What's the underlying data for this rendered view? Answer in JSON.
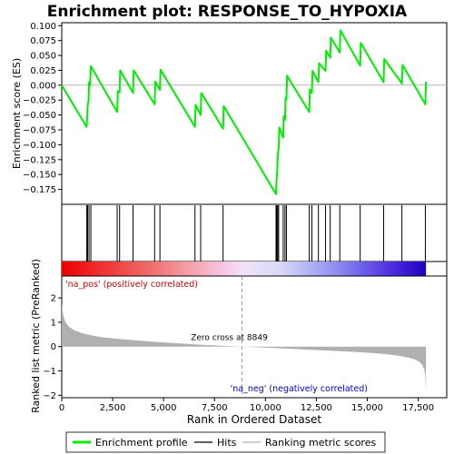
{
  "chart_data": {
    "type": "line",
    "title": "Enrichment plot: RESPONSE_TO_HYPOXIA",
    "es_panel": {
      "ylabel": "Enrichment score (ES)",
      "ylim": [
        -0.2,
        0.105
      ],
      "yticks": [
        -0.175,
        -0.15,
        -0.125,
        -0.1,
        -0.075,
        -0.05,
        -0.025,
        0.0,
        0.025,
        0.05,
        0.075,
        0.1
      ],
      "ytick_labels": [
        "−0.175",
        "−0.150",
        "−0.125",
        "−0.100",
        "−0.075",
        "−0.050",
        "−0.025",
        "0.000",
        "0.025",
        "0.050",
        "0.075",
        "0.100"
      ],
      "line_color": "#00ee00",
      "series": [
        {
          "x": [
            0,
            1220,
            1250,
            1270,
            1320,
            1340,
            1390,
            1430,
            2720,
            2760,
            2840,
            2870,
            3500,
            3530,
            4560,
            4590,
            4820,
            4850,
            6540,
            6570,
            6820,
            6850,
            7920,
            7950,
            10520,
            10540,
            10580,
            10600,
            10650,
            10680,
            10870,
            10900,
            10960,
            10990,
            11030,
            11060,
            12150,
            12180,
            12280,
            12310,
            12600,
            12630,
            12950,
            12980,
            13180,
            13210,
            13650,
            13680,
            14650,
            14680,
            15800,
            15830,
            16700,
            16730,
            17850,
            17880
          ],
          "y": [
            0.0,
            -0.07,
            -0.055,
            -0.035,
            -0.025,
            0.005,
            0.0,
            0.032,
            -0.045,
            -0.01,
            -0.012,
            0.025,
            -0.013,
            0.025,
            -0.032,
            0.006,
            -0.008,
            0.026,
            -0.07,
            -0.033,
            -0.05,
            -0.013,
            -0.073,
            -0.035,
            -0.183,
            -0.163,
            -0.143,
            -0.12,
            -0.105,
            -0.071,
            -0.088,
            -0.052,
            -0.058,
            -0.021,
            -0.024,
            0.016,
            -0.045,
            -0.007,
            -0.013,
            0.024,
            0.005,
            0.037,
            0.024,
            0.058,
            0.046,
            0.08,
            0.055,
            0.092,
            0.033,
            0.071,
            0.005,
            0.044,
            0.003,
            0.034,
            -0.032,
            0.006
          ]
        }
      ]
    },
    "hits": [
      1220,
      1270,
      1340,
      1430,
      2720,
      2840,
      3500,
      4560,
      4820,
      6540,
      6820,
      7920,
      10520,
      10560,
      10600,
      10650,
      10870,
      10960,
      11030,
      12150,
      12280,
      12600,
      12950,
      13180,
      13650,
      14650,
      15800,
      16700,
      17850
    ],
    "rank_panel": {
      "ylabel": "Ranked list metric (PreRanked)",
      "ylim": [
        -2.1,
        2.9
      ],
      "yticks": [
        -2,
        -1,
        0,
        1,
        2
      ],
      "ytick_labels": [
        "−2",
        "−1",
        "0",
        "1",
        "2"
      ],
      "fill_color": "#b0b0b0",
      "curve_x": [
        0,
        20,
        60,
        120,
        200,
        350,
        600,
        1000,
        1500,
        2000,
        3000,
        4000,
        5000,
        6000,
        7000,
        8000,
        8849,
        10000,
        11000,
        12000,
        13000,
        14000,
        15000,
        15800,
        16500,
        17000,
        17300,
        17550,
        17700,
        17800,
        17850,
        17880
      ],
      "curve_y": [
        1.8,
        1.6,
        1.35,
        1.15,
        0.98,
        0.82,
        0.68,
        0.55,
        0.45,
        0.38,
        0.3,
        0.23,
        0.17,
        0.12,
        0.07,
        0.03,
        0.0,
        -0.04,
        -0.08,
        -0.12,
        -0.16,
        -0.2,
        -0.25,
        -0.3,
        -0.37,
        -0.45,
        -0.52,
        -0.62,
        -0.75,
        -0.95,
        -1.2,
        -1.9
      ],
      "zero_cross_label": "Zero cross at 8849",
      "zero_cross": 8849,
      "pos_label": "'na_pos' (positively correlated)",
      "neg_label": "'na_neg' (negatively correlated)"
    },
    "xlabel": "Rank in Ordered Dataset",
    "xlim": [
      0,
      18900
    ],
    "xticks": [
      0,
      2500,
      5000,
      7500,
      10000,
      12500,
      15000,
      17500
    ],
    "xtick_labels": [
      "0",
      "2,500",
      "5,000",
      "7,500",
      "10,000",
      "12,500",
      "15,000",
      "17,500"
    ],
    "n_genes": 17880,
    "legend": {
      "placement": "bottom",
      "items": [
        {
          "label": "Enrichment profile",
          "color": "#00ee00",
          "kind": "thick-line"
        },
        {
          "label": "Hits",
          "color": "#000000",
          "kind": "line"
        },
        {
          "label": "Ranking metric scores",
          "color": "#b0b0b0",
          "kind": "line"
        }
      ]
    },
    "colorbar_stops": [
      {
        "at": 0.0,
        "color": "#ee0000"
      },
      {
        "at": 0.25,
        "color": "#f07070"
      },
      {
        "at": 0.35,
        "color": "#f4a0a8"
      },
      {
        "at": 0.45,
        "color": "#f8c8e8"
      },
      {
        "at": 0.5,
        "color": "#f0e4f8"
      },
      {
        "at": 0.6,
        "color": "#d8d8f8"
      },
      {
        "at": 0.75,
        "color": "#9090f0"
      },
      {
        "at": 0.9,
        "color": "#5030e0"
      },
      {
        "at": 1.0,
        "color": "#2000c0"
      }
    ]
  }
}
